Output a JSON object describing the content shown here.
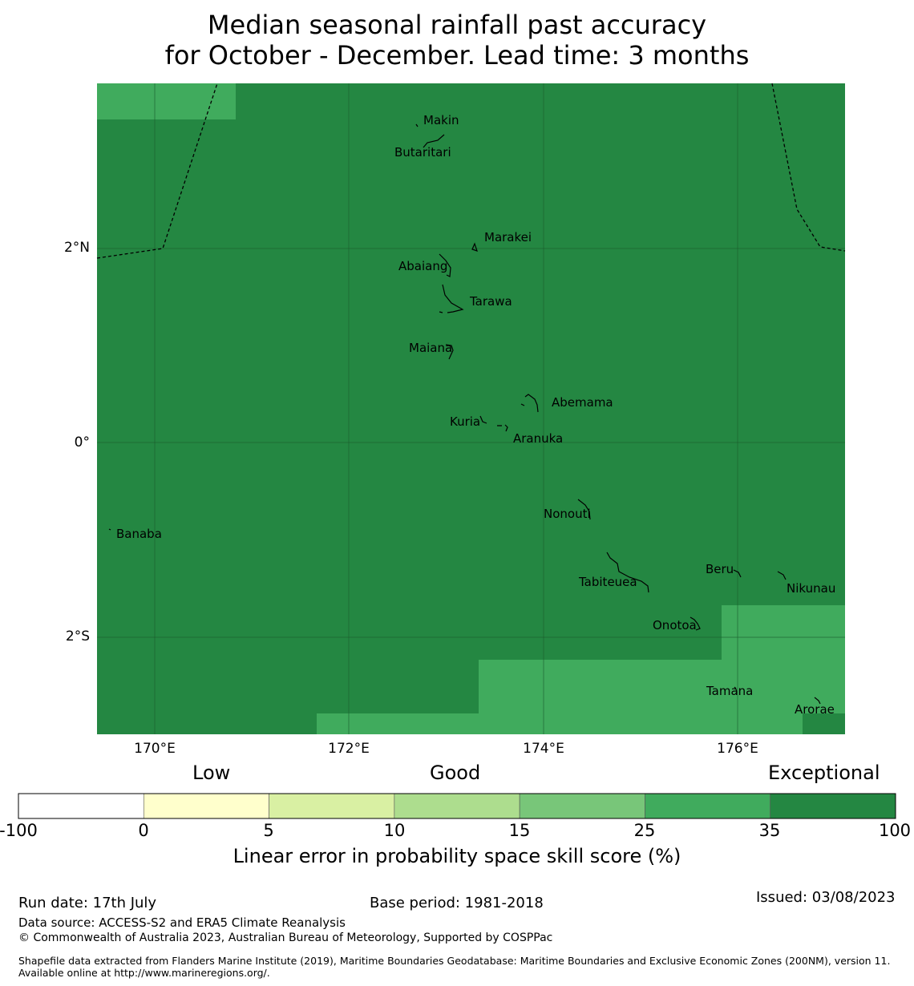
{
  "title": {
    "line1": "Median seasonal rainfall past accuracy",
    "line2": "for October - December. Lead time: 3 months"
  },
  "map": {
    "lat_labels": [
      "2°N",
      "0°",
      "2°S"
    ],
    "lat_values": [
      2,
      0,
      -2
    ],
    "lon_labels": [
      "170°E",
      "172°E",
      "174°E",
      "176°E"
    ],
    "lon_values": [
      170,
      172,
      174,
      176
    ],
    "lon_range": [
      169.4,
      177.1
    ],
    "lat_range": [
      -3.0,
      3.7
    ],
    "colors": {
      "exceptional": "#248742",
      "very_good": "#40ab5d",
      "gridline": "#1a5a2c"
    },
    "islands": [
      {
        "name": "Makin",
        "lon": 173.0,
        "lat": 3.3
      },
      {
        "name": "Butaritari",
        "lon": 172.8,
        "lat": 3.05
      },
      {
        "name": "Marakei",
        "lon": 173.25,
        "lat": 2.05
      },
      {
        "name": "Abaiang",
        "lon": 172.95,
        "lat": 1.85
      },
      {
        "name": "Tarawa",
        "lon": 173.0,
        "lat": 1.45
      },
      {
        "name": "Maiana",
        "lon": 173.0,
        "lat": 0.95
      },
      {
        "name": "Abemama",
        "lon": 173.85,
        "lat": 0.4
      },
      {
        "name": "Kuria",
        "lon": 173.4,
        "lat": 0.22
      },
      {
        "name": "Aranuka",
        "lon": 173.6,
        "lat": 0.18
      },
      {
        "name": "Banaba",
        "lon": 169.53,
        "lat": -0.87
      },
      {
        "name": "Nonouti",
        "lon": 174.45,
        "lat": -0.65
      },
      {
        "name": "Tabiteuea",
        "lon": 174.85,
        "lat": -1.35
      },
      {
        "name": "Beru",
        "lon": 175.95,
        "lat": -1.33
      },
      {
        "name": "Nikunau",
        "lon": 176.45,
        "lat": -1.35
      },
      {
        "name": "Onotoa",
        "lon": 175.55,
        "lat": -1.85
      },
      {
        "name": "Tamana",
        "lon": 175.97,
        "lat": -2.5
      },
      {
        "name": "Arorae",
        "lon": 176.82,
        "lat": -2.65
      }
    ],
    "eez_boundary_west": [
      [
        169.4,
        1.9
      ],
      [
        170.1,
        2.0
      ],
      [
        170.65,
        3.7
      ]
    ],
    "eez_boundary_east": [
      [
        176.35,
        3.7
      ],
      [
        176.6,
        2.4
      ],
      [
        176.85,
        2.0
      ],
      [
        177.1,
        1.98
      ]
    ]
  },
  "legend": {
    "categories": [
      "Low",
      "Good",
      "Exceptional"
    ],
    "ticks": [
      "-100",
      "0",
      "5",
      "10",
      "15",
      "25",
      "35",
      "100"
    ],
    "bins": [
      {
        "from": -100,
        "to": 0,
        "color": "#ffffff"
      },
      {
        "from": 0,
        "to": 5,
        "color": "#ffffcc"
      },
      {
        "from": 5,
        "to": 10,
        "color": "#d9f0a3"
      },
      {
        "from": 10,
        "to": 15,
        "color": "#addd8e"
      },
      {
        "from": 15,
        "to": 25,
        "color": "#78c679"
      },
      {
        "from": 25,
        "to": 35,
        "color": "#40ab5d"
      },
      {
        "from": 35,
        "to": 100,
        "color": "#248742"
      }
    ],
    "label": "Linear error in probability space skill score (%)"
  },
  "footer": {
    "run_date": "Run date: 17th July",
    "base_period": "Base period: 1981-2018",
    "issued": "Issued: 03/08/2023",
    "data_source": "Data source: ACCESS-S2 and ERA5 Climate Reanalysis",
    "copyright": "© Commonwealth of Australia 2023, Australian Bureau of Meteorology, Supported by COSPPac",
    "shapefile": "Shapefile data extracted from Flanders Marine Institute (2019), Maritime Boundaries Geodatabase: Maritime Boundaries and Exclusive Economic Zones (200NM), version 11. Available online at http://www.marineregions.org/."
  }
}
